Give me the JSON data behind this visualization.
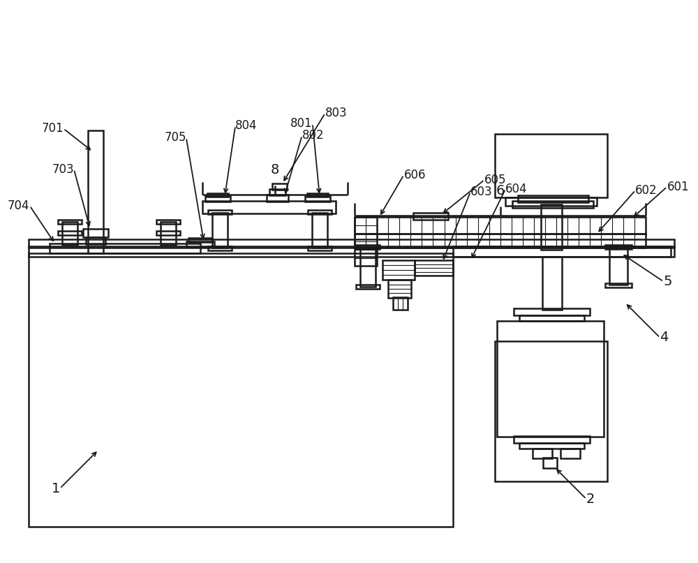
{
  "bg_color": "#ffffff",
  "lc": "#1a1a1a",
  "lw": 1.8,
  "fig_w": 10.0,
  "fig_h": 8.07
}
